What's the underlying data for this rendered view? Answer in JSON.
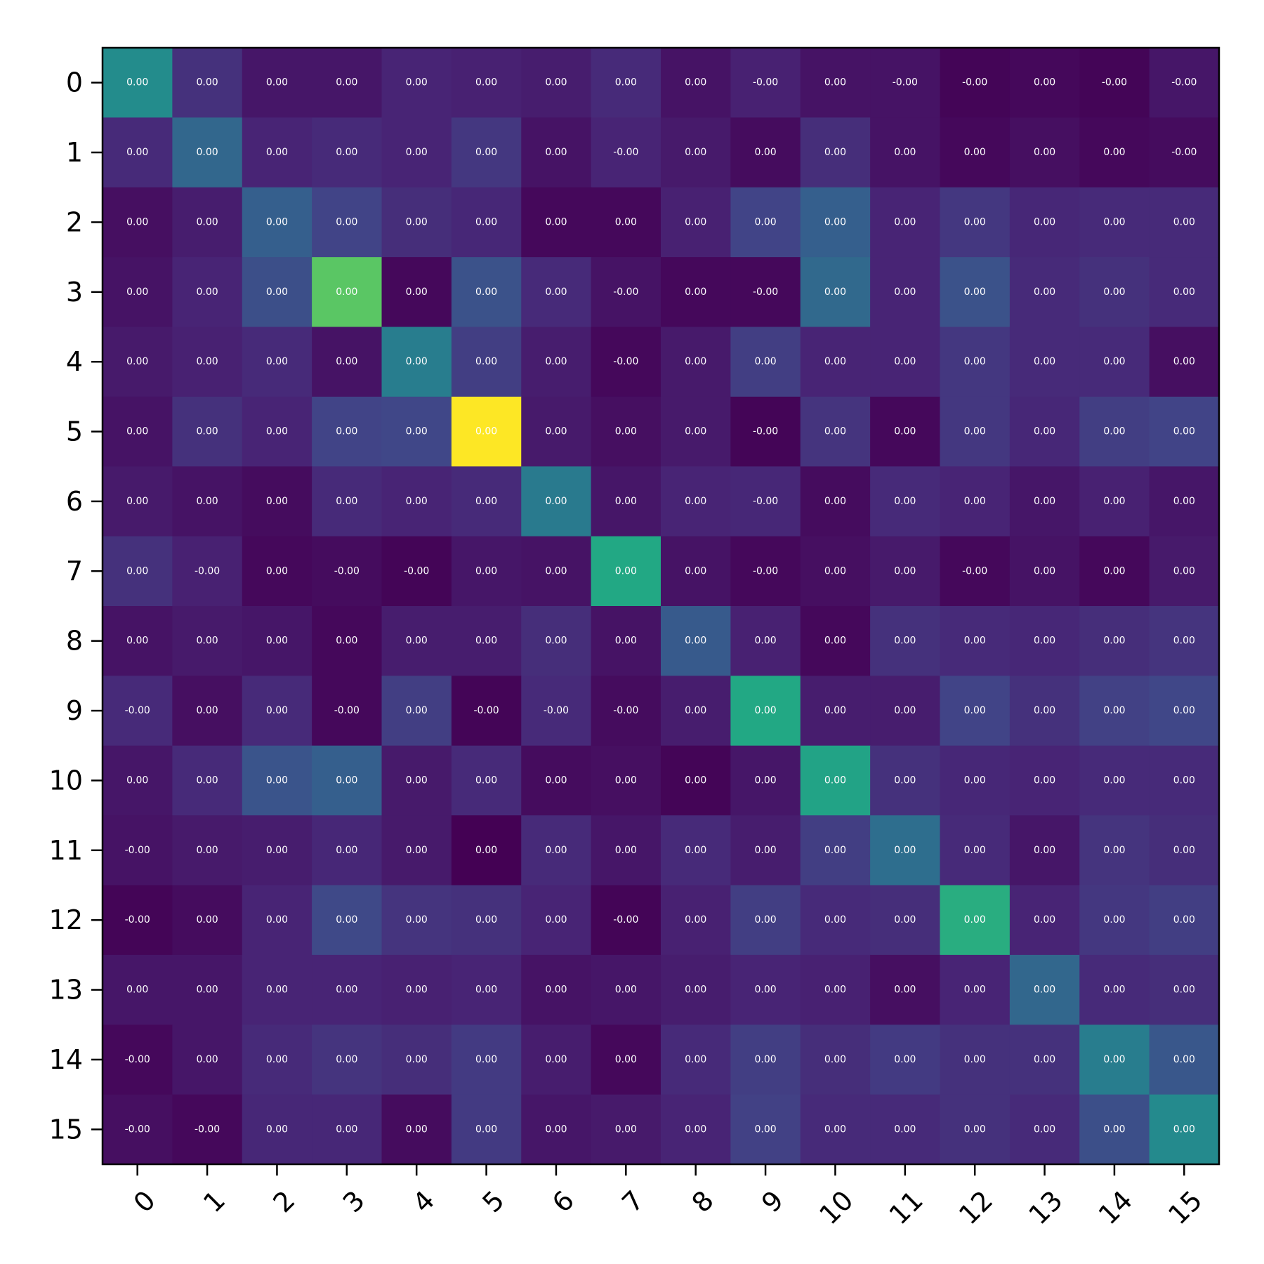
{
  "chart_data": {
    "type": "heatmap",
    "title": "",
    "xlabel": "",
    "ylabel": "",
    "colormap": "viridis",
    "x_ticks": [
      "0",
      "1",
      "2",
      "3",
      "4",
      "5",
      "6",
      "7",
      "8",
      "9",
      "10",
      "11",
      "12",
      "13",
      "14",
      "15"
    ],
    "y_ticks": [
      "0",
      "1",
      "2",
      "3",
      "4",
      "5",
      "6",
      "7",
      "8",
      "9",
      "10",
      "11",
      "12",
      "13",
      "14",
      "15"
    ],
    "intensity": [
      [
        0.48,
        0.14,
        0.06,
        0.06,
        0.1,
        0.09,
        0.08,
        0.12,
        0.05,
        0.09,
        0.05,
        0.05,
        0.01,
        0.02,
        0.01,
        0.06
      ],
      [
        0.12,
        0.33,
        0.1,
        0.12,
        0.1,
        0.16,
        0.05,
        0.1,
        0.07,
        0.03,
        0.13,
        0.05,
        0.02,
        0.04,
        0.02,
        0.03
      ],
      [
        0.04,
        0.08,
        0.3,
        0.2,
        0.13,
        0.11,
        0.02,
        0.02,
        0.09,
        0.2,
        0.3,
        0.1,
        0.16,
        0.11,
        0.12,
        0.12
      ],
      [
        0.05,
        0.1,
        0.24,
        0.74,
        0.02,
        0.25,
        0.12,
        0.05,
        0.02,
        0.02,
        0.34,
        0.1,
        0.25,
        0.12,
        0.14,
        0.12
      ],
      [
        0.07,
        0.09,
        0.12,
        0.05,
        0.42,
        0.18,
        0.08,
        0.02,
        0.07,
        0.18,
        0.1,
        0.1,
        0.16,
        0.12,
        0.12,
        0.04
      ],
      [
        0.05,
        0.14,
        0.1,
        0.2,
        0.21,
        1.0,
        0.07,
        0.04,
        0.07,
        0.01,
        0.15,
        0.02,
        0.16,
        0.11,
        0.18,
        0.2
      ],
      [
        0.07,
        0.05,
        0.03,
        0.12,
        0.1,
        0.12,
        0.41,
        0.06,
        0.1,
        0.11,
        0.03,
        0.12,
        0.1,
        0.06,
        0.09,
        0.06
      ],
      [
        0.14,
        0.09,
        0.02,
        0.03,
        0.01,
        0.06,
        0.05,
        0.6,
        0.05,
        0.02,
        0.04,
        0.07,
        0.02,
        0.05,
        0.02,
        0.07
      ],
      [
        0.05,
        0.07,
        0.06,
        0.02,
        0.08,
        0.08,
        0.13,
        0.05,
        0.28,
        0.09,
        0.02,
        0.14,
        0.12,
        0.11,
        0.13,
        0.15
      ],
      [
        0.12,
        0.04,
        0.12,
        0.02,
        0.18,
        0.01,
        0.12,
        0.03,
        0.08,
        0.6,
        0.08,
        0.08,
        0.2,
        0.14,
        0.19,
        0.21
      ],
      [
        0.06,
        0.12,
        0.26,
        0.3,
        0.07,
        0.12,
        0.03,
        0.04,
        0.01,
        0.06,
        0.58,
        0.14,
        0.11,
        0.1,
        0.12,
        0.12
      ],
      [
        0.05,
        0.07,
        0.08,
        0.11,
        0.07,
        0.0,
        0.12,
        0.06,
        0.12,
        0.08,
        0.18,
        0.36,
        0.12,
        0.06,
        0.15,
        0.13
      ],
      [
        0.01,
        0.03,
        0.1,
        0.22,
        0.15,
        0.14,
        0.1,
        0.01,
        0.09,
        0.18,
        0.12,
        0.13,
        0.62,
        0.1,
        0.16,
        0.18
      ],
      [
        0.06,
        0.06,
        0.1,
        0.1,
        0.09,
        0.1,
        0.05,
        0.06,
        0.08,
        0.1,
        0.09,
        0.04,
        0.1,
        0.33,
        0.12,
        0.13
      ],
      [
        0.02,
        0.06,
        0.12,
        0.15,
        0.13,
        0.17,
        0.08,
        0.02,
        0.12,
        0.18,
        0.13,
        0.17,
        0.14,
        0.14,
        0.42,
        0.27
      ],
      [
        0.04,
        0.02,
        0.11,
        0.11,
        0.03,
        0.17,
        0.06,
        0.07,
        0.1,
        0.19,
        0.12,
        0.12,
        0.14,
        0.12,
        0.24,
        0.47
      ]
    ],
    "cell_labels": [
      [
        "0.00",
        "0.00",
        "0.00",
        "0.00",
        "0.00",
        "0.00",
        "0.00",
        "0.00",
        "0.00",
        "-0.00",
        "0.00",
        "-0.00",
        "-0.00",
        "0.00",
        "-0.00",
        "-0.00"
      ],
      [
        "0.00",
        "0.00",
        "0.00",
        "0.00",
        "0.00",
        "0.00",
        "0.00",
        "-0.00",
        "0.00",
        "0.00",
        "0.00",
        "0.00",
        "0.00",
        "0.00",
        "0.00",
        "-0.00"
      ],
      [
        "0.00",
        "0.00",
        "0.00",
        "0.00",
        "0.00",
        "0.00",
        "0.00",
        "0.00",
        "0.00",
        "0.00",
        "0.00",
        "0.00",
        "0.00",
        "0.00",
        "0.00",
        "0.00"
      ],
      [
        "0.00",
        "0.00",
        "0.00",
        "0.00",
        "0.00",
        "0.00",
        "0.00",
        "-0.00",
        "0.00",
        "-0.00",
        "0.00",
        "0.00",
        "0.00",
        "0.00",
        "0.00",
        "0.00"
      ],
      [
        "0.00",
        "0.00",
        "0.00",
        "0.00",
        "0.00",
        "0.00",
        "0.00",
        "-0.00",
        "0.00",
        "0.00",
        "0.00",
        "0.00",
        "0.00",
        "0.00",
        "0.00",
        "0.00"
      ],
      [
        "0.00",
        "0.00",
        "0.00",
        "0.00",
        "0.00",
        "0.00",
        "0.00",
        "0.00",
        "0.00",
        "-0.00",
        "0.00",
        "0.00",
        "0.00",
        "0.00",
        "0.00",
        "0.00"
      ],
      [
        "0.00",
        "0.00",
        "0.00",
        "0.00",
        "0.00",
        "0.00",
        "0.00",
        "0.00",
        "0.00",
        "-0.00",
        "0.00",
        "0.00",
        "0.00",
        "0.00",
        "0.00",
        "0.00"
      ],
      [
        "0.00",
        "-0.00",
        "0.00",
        "-0.00",
        "-0.00",
        "0.00",
        "0.00",
        "0.00",
        "0.00",
        "-0.00",
        "0.00",
        "0.00",
        "-0.00",
        "0.00",
        "0.00",
        "0.00"
      ],
      [
        "0.00",
        "0.00",
        "0.00",
        "0.00",
        "0.00",
        "0.00",
        "0.00",
        "0.00",
        "0.00",
        "0.00",
        "0.00",
        "0.00",
        "0.00",
        "0.00",
        "0.00",
        "0.00"
      ],
      [
        "-0.00",
        "0.00",
        "0.00",
        "-0.00",
        "0.00",
        "-0.00",
        "-0.00",
        "-0.00",
        "0.00",
        "0.00",
        "0.00",
        "0.00",
        "0.00",
        "0.00",
        "0.00",
        "0.00"
      ],
      [
        "0.00",
        "0.00",
        "0.00",
        "0.00",
        "0.00",
        "0.00",
        "0.00",
        "0.00",
        "0.00",
        "0.00",
        "0.00",
        "0.00",
        "0.00",
        "0.00",
        "0.00",
        "0.00"
      ],
      [
        "-0.00",
        "0.00",
        "0.00",
        "0.00",
        "0.00",
        "0.00",
        "0.00",
        "0.00",
        "0.00",
        "0.00",
        "0.00",
        "0.00",
        "0.00",
        "0.00",
        "0.00",
        "0.00"
      ],
      [
        "-0.00",
        "0.00",
        "0.00",
        "0.00",
        "0.00",
        "0.00",
        "0.00",
        "-0.00",
        "0.00",
        "0.00",
        "0.00",
        "0.00",
        "0.00",
        "0.00",
        "0.00",
        "0.00"
      ],
      [
        "0.00",
        "0.00",
        "0.00",
        "0.00",
        "0.00",
        "0.00",
        "0.00",
        "0.00",
        "0.00",
        "0.00",
        "0.00",
        "0.00",
        "0.00",
        "0.00",
        "0.00",
        "0.00"
      ],
      [
        "-0.00",
        "0.00",
        "0.00",
        "0.00",
        "0.00",
        "0.00",
        "0.00",
        "0.00",
        "0.00",
        "0.00",
        "0.00",
        "0.00",
        "0.00",
        "0.00",
        "0.00",
        "0.00"
      ],
      [
        "-0.00",
        "-0.00",
        "0.00",
        "0.00",
        "0.00",
        "0.00",
        "0.00",
        "0.00",
        "0.00",
        "0.00",
        "0.00",
        "0.00",
        "0.00",
        "0.00",
        "0.00",
        "0.00"
      ]
    ],
    "grid": false,
    "legend": "none"
  }
}
